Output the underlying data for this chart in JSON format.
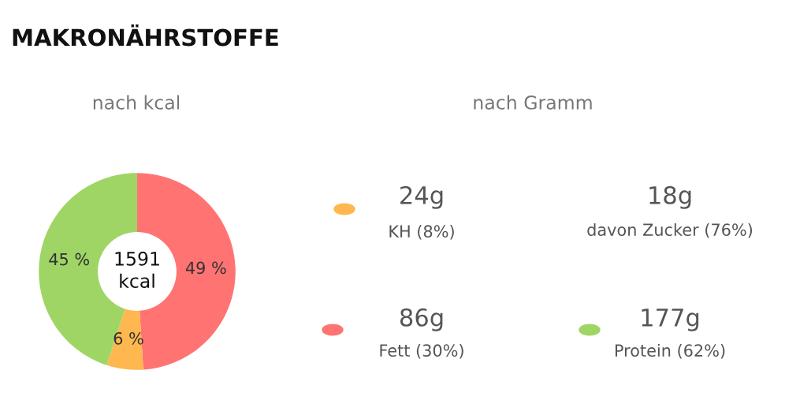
{
  "chart_data": [
    {
      "type": "donut",
      "title": "MAKRONÄHRSTOFFE",
      "subtitle": "nach kcal",
      "categories": [
        null,
        null,
        null
      ],
      "values": [
        49,
        6,
        45
      ],
      "colors": [
        "#ff7472",
        "#ffb74f",
        "#9fd565"
      ],
      "value_labels": [
        "49 %",
        "6 %",
        "45 %"
      ],
      "annotations": [
        "1591\nkcal"
      ],
      "legend": false
    },
    {
      "type": "other",
      "title": "nach Gramm",
      "annotations": [
        "24g",
        "KH (8%)",
        "18g",
        "davon Zucker (76%)",
        "86g",
        "Fett (30%)",
        "177g",
        "Protein (62%)"
      ],
      "colors": [
        "#ffb74f",
        null,
        "#ff7472",
        "#9fd565"
      ]
    }
  ]
}
